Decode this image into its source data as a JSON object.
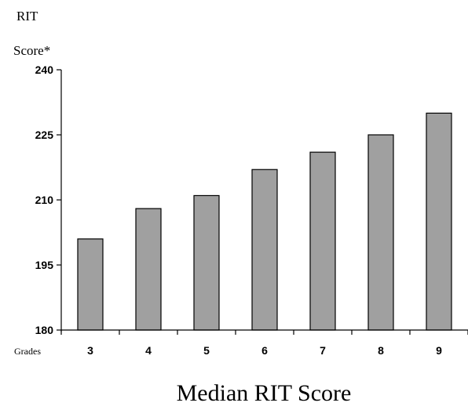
{
  "chart_data": {
    "type": "bar",
    "title": "Median RIT Score",
    "ylabel_line1": "RIT",
    "ylabel_line2": "Score*",
    "xlabel": "Grades",
    "categories": [
      "3",
      "4",
      "5",
      "6",
      "7",
      "8",
      "9"
    ],
    "values": [
      201,
      208,
      211,
      217,
      221,
      225,
      230
    ],
    "ylim": [
      180,
      240
    ],
    "yticks": [
      180,
      195,
      210,
      225,
      240
    ],
    "bar_color": "#a0a0a0",
    "bar_stroke": "#000000",
    "grid": false,
    "legend": "none"
  }
}
